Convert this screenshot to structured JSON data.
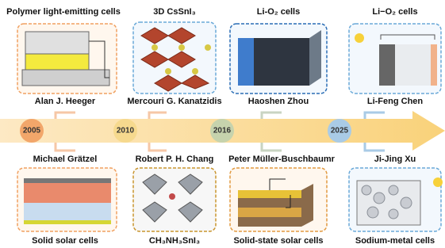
{
  "top": [
    {
      "title": "Polymer light-emitting cells",
      "person": "Alan J. Heeger"
    },
    {
      "title": "3D CsSnI₃",
      "person": "Mercouri G. Kanatzidis"
    },
    {
      "title": "Li-O₂ cells",
      "person": "Haoshen Zhou"
    },
    {
      "title": "Li−O₂ cells",
      "person": "Li-Feng Chen"
    }
  ],
  "years": [
    "2005",
    "2010",
    "2016",
    "2025"
  ],
  "bottom": [
    {
      "person": "Michael Grätzel",
      "title": "Solid solar cells"
    },
    {
      "person": "Robert P. H. Chang",
      "title": "CH₃NH₃SnI₃"
    },
    {
      "person": "Peter Müller-Buschbaumr",
      "title": "Solid-state solar cells"
    },
    {
      "person": "Ji-Jing Xu",
      "title": "Sodium-metal cells"
    }
  ]
}
